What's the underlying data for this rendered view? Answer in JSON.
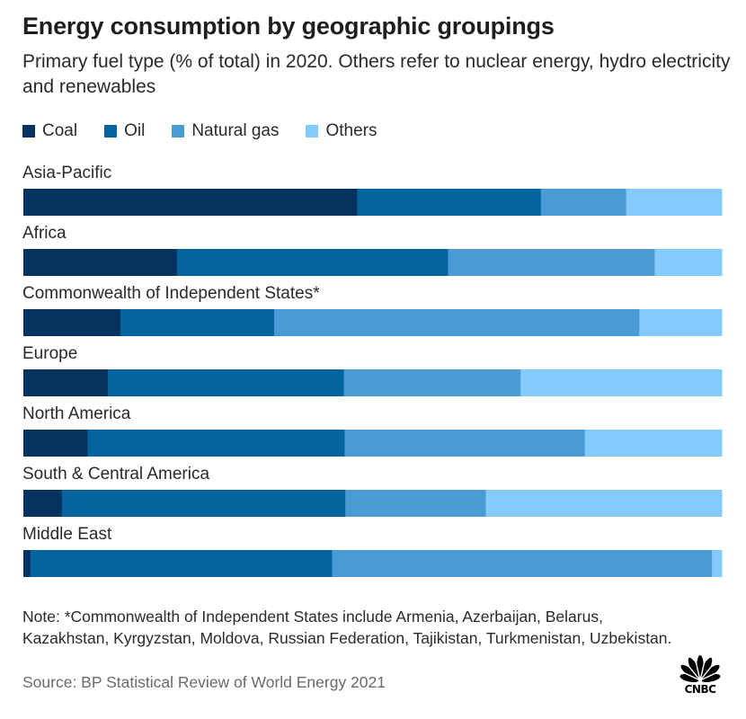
{
  "chart_data": {
    "type": "bar",
    "orientation": "horizontal",
    "stacked": true,
    "normalized": true,
    "title": "Energy consumption by geographic groupings",
    "subtitle": "Primary fuel type (% of total) in 2020. Others refer to nuclear energy, hydro electricity and renewables",
    "categories": [
      "Asia-Pacific",
      "Africa",
      "Commonwealth of Independent States*",
      "Europe",
      "North America",
      "South & Central America",
      "Middle East"
    ],
    "series": [
      {
        "name": "Coal",
        "color": "#05335f",
        "values": [
          47.8,
          22.0,
          13.9,
          12.1,
          9.2,
          5.5,
          1.0
        ]
      },
      {
        "name": "Oil",
        "color": "#04649e",
        "values": [
          26.3,
          38.8,
          22.0,
          33.8,
          36.8,
          40.6,
          43.2
        ]
      },
      {
        "name": "Natural gas",
        "color": "#4a9ad6",
        "values": [
          12.2,
          29.6,
          52.3,
          25.3,
          34.4,
          20.1,
          54.4
        ]
      },
      {
        "name": "Others",
        "color": "#82cbfb",
        "values": [
          13.7,
          9.6,
          11.8,
          28.8,
          19.6,
          33.8,
          1.4
        ]
      }
    ],
    "xlim": [
      0,
      100
    ],
    "grid": false,
    "legend_position": "top-left"
  },
  "note": "Note: *Commonwealth of Independent States include Armenia, Azerbaijan, Belarus, Kazakhstan, Kyrgyzstan, Moldova, Russian Federation, Tajikistan, Turkmenistan, Uzbekistan.",
  "source": "Source: BP Statistical Review of World Energy 2021",
  "logo": {
    "text": "CNBC",
    "icon": "peacock-icon"
  }
}
